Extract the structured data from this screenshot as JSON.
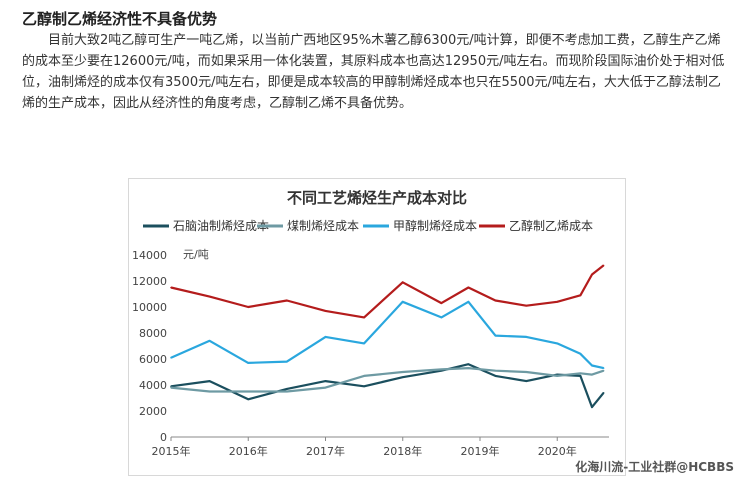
{
  "article": {
    "title": "乙醇制乙烯经济性不具备优势",
    "paragraph": "目前大致2吨乙醇可生产一吨乙烯，以当前广西地区95%木薯乙醇6300元/吨计算，即便不考虑加工费，乙醇生产乙烯的成本至少要在12600元/吨，而如果采用一体化装置，其原料成本也高达12950元/吨左右。而现阶段国际油价处于相对低位，油制烯烃的成本仅有3500元/吨左右，即便是成本较高的甲醇制烯烃成本也只在5500元/吨左右，大大低于乙醇法制乙烯的生产成本，因此从经济性的角度考虑，乙醇制乙烯不具备优势。"
  },
  "footer": {
    "tag": "化海川流-工业社群@HCBBS"
  },
  "chart_data": {
    "type": "line",
    "title": "不同工艺烯烃生产成本对比",
    "ylabel": "元/吨",
    "ylim": [
      0,
      14000
    ],
    "yticks": [
      0,
      2000,
      4000,
      6000,
      8000,
      10000,
      12000,
      14000
    ],
    "xticks": [
      "2015年",
      "2016年",
      "2017年",
      "2018年",
      "2019年",
      "2020年"
    ],
    "grid": false,
    "legend_position": "top",
    "x": [
      2015.0,
      2015.5,
      2016.0,
      2016.5,
      2017.0,
      2017.5,
      2018.0,
      2018.5,
      2018.85,
      2019.2,
      2019.6,
      2020.0,
      2020.3,
      2020.45,
      2020.6
    ],
    "series": [
      {
        "name": "石脑油制烯烃成本",
        "color": "#1b4f5e",
        "values": [
          3900,
          4300,
          2900,
          3700,
          4300,
          3900,
          4600,
          5100,
          5600,
          4700,
          4300,
          4800,
          4700,
          2300,
          3400
        ]
      },
      {
        "name": "煤制烯烃成本",
        "color": "#6e9aa3",
        "values": [
          3800,
          3500,
          3500,
          3500,
          3800,
          4700,
          5000,
          5200,
          5300,
          5100,
          5000,
          4700,
          4900,
          4800,
          5100
        ]
      },
      {
        "name": "甲醇制烯烃成本",
        "color": "#2aa7de",
        "values": [
          6100,
          7400,
          5700,
          5800,
          7700,
          7200,
          10400,
          9200,
          10400,
          7800,
          7700,
          7200,
          6400,
          5500,
          5300
        ]
      },
      {
        "name": "乙醇制乙烯成本",
        "color": "#b41c1c",
        "values": [
          11500,
          10800,
          10000,
          10500,
          9700,
          9200,
          11900,
          10300,
          11500,
          10500,
          10100,
          10400,
          10900,
          12500,
          13200
        ]
      }
    ]
  }
}
